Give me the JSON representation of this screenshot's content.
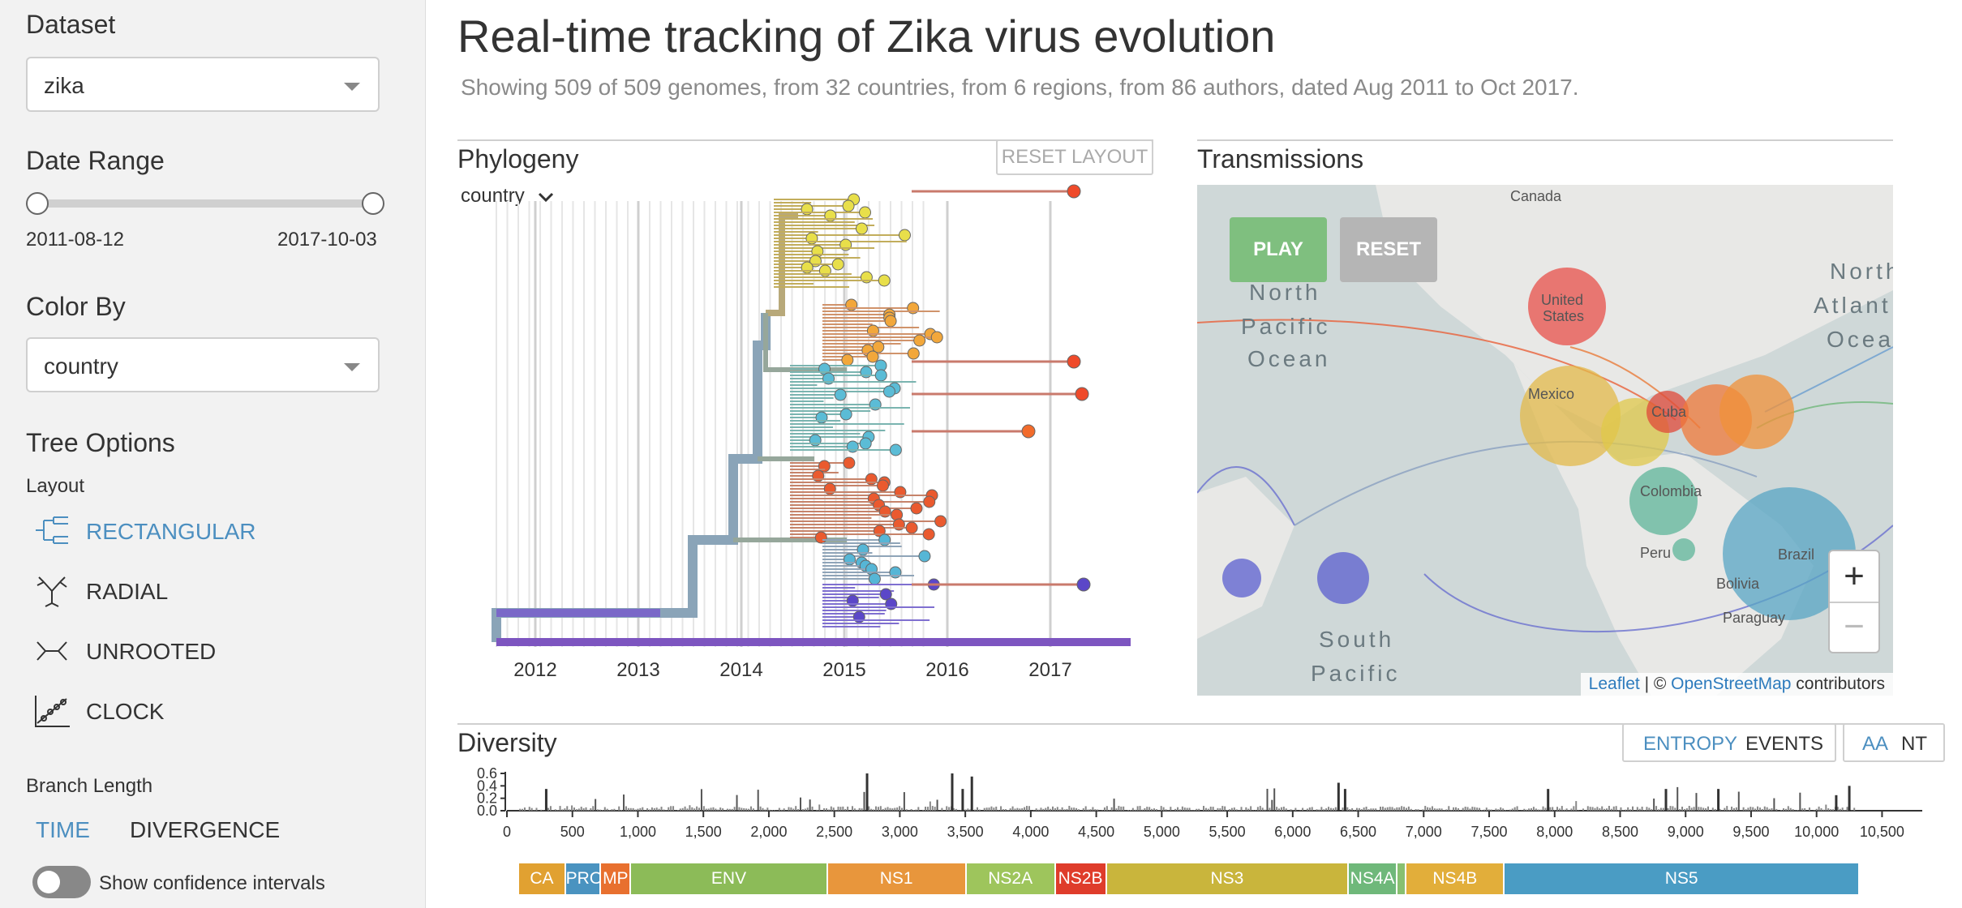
{
  "sidebar": {
    "dataset_label": "Dataset",
    "dataset_value": "zika",
    "date_range_label": "Date Range",
    "date_start": "2011-08-12",
    "date_end": "2017-10-03",
    "color_by_label": "Color By",
    "color_by_value": "country",
    "tree_options_label": "Tree Options",
    "layout_label": "Layout",
    "layouts": [
      {
        "label": "RECTANGULAR",
        "icon": "rectangular-tree-icon",
        "active": true
      },
      {
        "label": "RADIAL",
        "icon": "radial-tree-icon",
        "active": false
      },
      {
        "label": "UNROOTED",
        "icon": "unrooted-tree-icon",
        "active": false
      },
      {
        "label": "CLOCK",
        "icon": "clock-tree-icon",
        "active": false
      }
    ],
    "branch_length_label": "Branch Length",
    "branch_time": "TIME",
    "branch_divergence": "DIVERGENCE",
    "confidence_label": "Show confidence intervals"
  },
  "header": {
    "title": "Real-time tracking of Zika virus evolution",
    "subtitle": "Showing 509 of 509 genomes, from 32 countries, from 6 regions, from 86 authors, dated Aug 2011 to Oct 2017."
  },
  "phylogeny": {
    "title": "Phylogeny",
    "reset_layout": "RESET LAYOUT",
    "color_dropdown": "country",
    "x_ticks": [
      "2012",
      "2013",
      "2014",
      "2015",
      "2016",
      "2017"
    ]
  },
  "transmissions": {
    "title": "Transmissions",
    "play": "PLAY",
    "reset": "RESET",
    "labels": [
      "Canada",
      "North",
      "Pacific",
      "Ocean",
      "North",
      "Atlant",
      "Ocea",
      "United",
      "States",
      "Mexico",
      "Cuba",
      "Colombia",
      "Peru",
      "Brazil",
      "Bolivia",
      "Paraguay",
      "South",
      "Pacific"
    ],
    "zoom_in": "+",
    "zoom_out": "−",
    "attribution_leaflet": "Leaflet",
    "attribution_sep": " | © ",
    "attribution_osm": "OpenStreetMap",
    "attribution_tail": " contributors"
  },
  "diversity": {
    "title": "Diversity",
    "entropy": "ENTROPY",
    "events": "EVENTS",
    "aa": "AA",
    "nt": "NT",
    "y_ticks": [
      "0.6",
      "0.4",
      "0.2",
      "0.0"
    ],
    "x_ticks": [
      "0",
      "500",
      "1,000",
      "1,500",
      "2,000",
      "2,500",
      "3,000",
      "3,500",
      "4,000",
      "4,500",
      "5,000",
      "5,500",
      "6,000",
      "6,500",
      "7,000",
      "7,500",
      "8,000",
      "8,500",
      "9,000",
      "9,500",
      "10,000",
      "10,500"
    ],
    "genes": [
      {
        "name": "CA",
        "start": 95,
        "end": 450,
        "color": "#e1a131"
      },
      {
        "name": "PRO",
        "start": 450,
        "end": 720,
        "color": "#4a93c0"
      },
      {
        "name": "MP",
        "start": 720,
        "end": 950,
        "color": "#e8702f"
      },
      {
        "name": "ENV",
        "start": 950,
        "end": 2450,
        "color": "#8cbb58"
      },
      {
        "name": "NS1",
        "start": 2450,
        "end": 3510,
        "color": "#e8963c"
      },
      {
        "name": "NS2A",
        "start": 3510,
        "end": 4190,
        "color": "#9ec55c"
      },
      {
        "name": "NS2B",
        "start": 4190,
        "end": 4580,
        "color": "#df3c2b"
      },
      {
        "name": "NS3",
        "start": 4580,
        "end": 6430,
        "color": "#c9b53c"
      },
      {
        "name": "NS4A",
        "start": 6430,
        "end": 6800,
        "color": "#6fb87a"
      },
      {
        "name": "",
        "start": 6800,
        "end": 6870,
        "color": "#88c070"
      },
      {
        "name": "NS4B",
        "start": 6870,
        "end": 7620,
        "color": "#e2ae3a"
      },
      {
        "name": "NS5",
        "start": 7620,
        "end": 10330,
        "color": "#4a9cc4"
      }
    ]
  },
  "colors": {
    "accent": "#4c8fc0",
    "play": "#7fbf7f",
    "reset": "#b5b5b5",
    "map_water": "#cfd8d8"
  }
}
